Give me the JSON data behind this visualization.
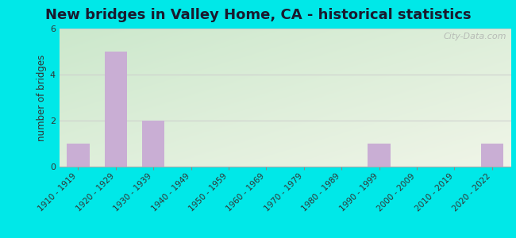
{
  "title": "New bridges in Valley Home, CA - historical statistics",
  "categories": [
    "1910 - 1919",
    "1920 - 1929",
    "1930 - 1939",
    "1940 - 1949",
    "1950 - 1959",
    "1960 - 1969",
    "1970 - 1979",
    "1980 - 1989",
    "1990 - 1999",
    "2000 - 2009",
    "2010 - 2019",
    "2020 - 2022"
  ],
  "values": [
    1,
    5,
    2,
    0,
    0,
    0,
    0,
    0,
    1,
    0,
    0,
    1
  ],
  "bar_color": "#c9aed4",
  "ylabel": "number of bridges",
  "ylim": [
    0,
    6
  ],
  "yticks": [
    0,
    2,
    4,
    6
  ],
  "background_outer": "#00e8e8",
  "background_inner_topleft": "#cce8cc",
  "background_inner_bottomright": "#f0f5e8",
  "grid_color": "#cccccc",
  "title_fontsize": 13,
  "tick_fontsize": 7.5,
  "ylabel_fontsize": 8.5,
  "watermark": "City-Data.com",
  "spine_color": "#aaaaaa"
}
